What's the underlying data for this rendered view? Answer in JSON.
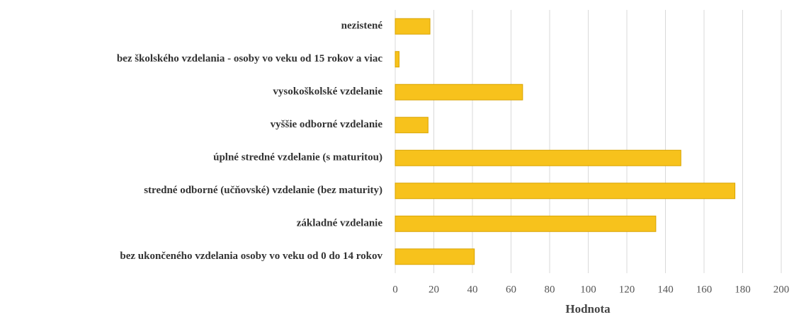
{
  "chart_data": {
    "type": "barh",
    "categories": [
      "nezistené",
      "bez školského vzdelania - osoby vo veku od 15 rokov a viac",
      "vysokoškolské vzdelanie",
      "vyššie odborné vzdelanie",
      "úplné stredné vzdelanie (s maturitou)",
      "stredné odborné (učňovské) vzdelanie (bez maturity)",
      "základné vzdelanie",
      "bez ukončeného vzdelania osoby vo veku od 0 do 14 rokov"
    ],
    "values": [
      18,
      2,
      66,
      17,
      148,
      176,
      135,
      41
    ],
    "color": "#f7c21c",
    "xlabel": "Hodnota",
    "xlim": [
      0,
      200
    ],
    "xticks": [
      0,
      20,
      40,
      60,
      80,
      100,
      120,
      140,
      160,
      180,
      200
    ],
    "grid": true
  }
}
